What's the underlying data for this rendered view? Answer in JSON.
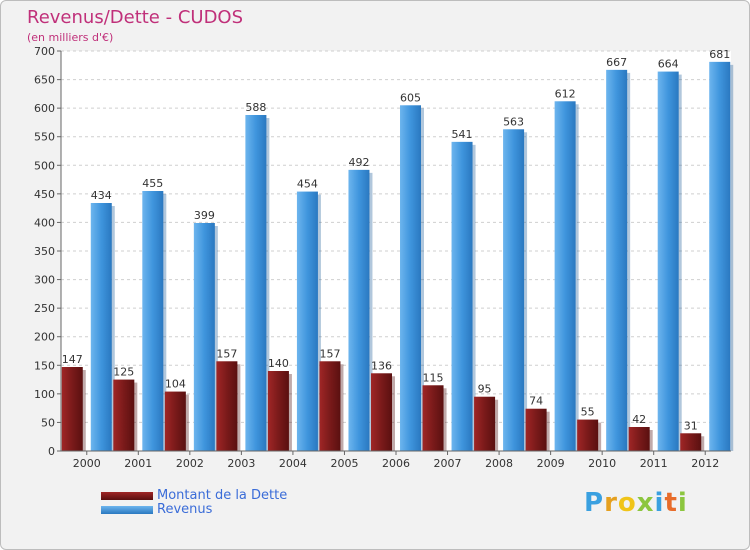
{
  "header": {
    "title": "Revenus/Dette - CUDOS",
    "subtitle": "(en milliers d'€)"
  },
  "chart_data": {
    "type": "bar",
    "title": "Revenus/Dette - CUDOS",
    "subtitle": "(en milliers d'€)",
    "xlabel": "",
    "ylabel": "",
    "ylim": [
      0,
      700
    ],
    "yticks": [
      0,
      50,
      100,
      150,
      200,
      250,
      300,
      350,
      400,
      450,
      500,
      550,
      600,
      650,
      700
    ],
    "grid": true,
    "categories": [
      "2000",
      "2001",
      "2002",
      "2003",
      "2004",
      "2005",
      "2006",
      "2007",
      "2008",
      "2009",
      "2010",
      "2011",
      "2012"
    ],
    "series": [
      {
        "name": "Montant de la Dette",
        "color": "#7a1a1a",
        "values": [
          147,
          125,
          104,
          157,
          140,
          157,
          136,
          115,
          95,
          74,
          55,
          42,
          31
        ]
      },
      {
        "name": "Revenus",
        "color": "#3d93dc",
        "values": [
          434,
          455,
          399,
          588,
          454,
          492,
          605,
          541,
          563,
          612,
          667,
          664,
          681
        ]
      }
    ],
    "legend": "bottom-left"
  },
  "legend": {
    "debt_label": "Montant de la Dette",
    "revenue_label": "Revenus"
  },
  "brand": {
    "letters": [
      "P",
      "r",
      "o",
      "x",
      "i",
      "t",
      "i"
    ],
    "colors": [
      "#3aa0e0",
      "#e5a01f",
      "#f0c419",
      "#8cc63f",
      "#3aa0e0",
      "#e86c2a",
      "#8cc63f"
    ]
  }
}
